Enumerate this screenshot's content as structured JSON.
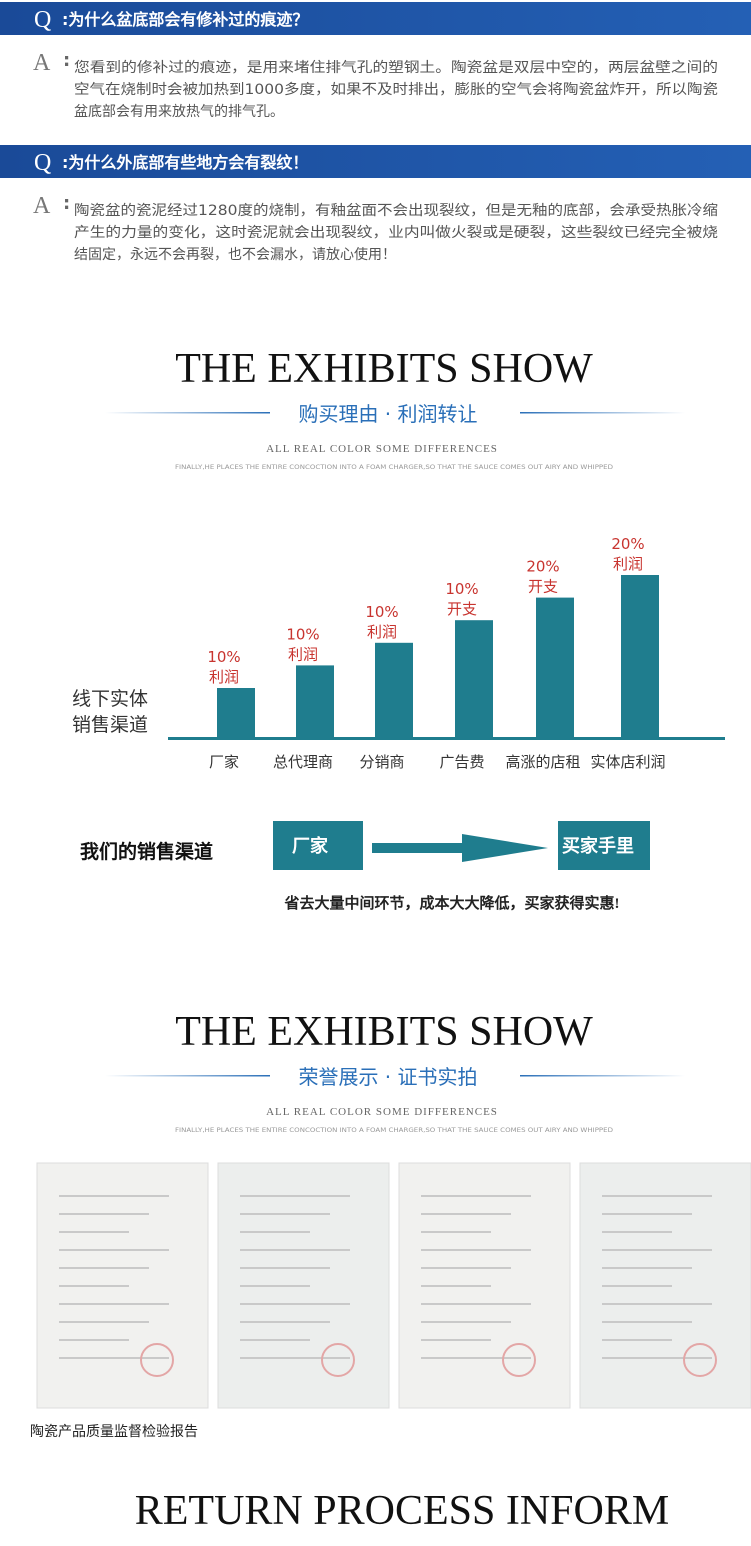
{
  "faq": [
    {
      "q": "Q",
      "question": ":为什么盆底部会有修补过的痕迹？",
      "a": "A",
      "colon": ":",
      "answer_lines": [
        "您看到的修补过的痕迹，是用来堵住排气孔的塑钢土。陶瓷盆是双层中空的，两层盆壁之间的",
        "空气在烧制时会被加热到1000多度，如果不及时排出，膨胀的空气会将陶瓷盆炸开，所以陶瓷",
        "盆底部会有用来放热气的排气孔。"
      ]
    },
    {
      "q": "Q",
      "question": ":为什么外底部有些地方会有裂纹！",
      "a": "A",
      "colon": ":",
      "answer_lines": [
        "陶瓷盆的瓷泥经过1280度的烧制，有釉盆面不会出现裂纹，但是无釉的底部，会承受热胀冷缩",
        "产生的力量的变化，这时瓷泥就会出现裂纹，业内叫做火裂或是硬裂，这些裂纹已经完全被烧",
        "结固定，永远不会再裂，也不会漏水，请放心使用！"
      ]
    }
  ],
  "exhibits": [
    {
      "title": "THE EXHIBITS SHOW",
      "subtitle": "购买理由 · 利润转让",
      "caption": "ALL REAL COLOR SOME DIFFERENCES",
      "fine_print": "FINALLY,HE PLACES THE ENTIRE CONCOCTION INTO A FOAM CHARGER,SO THAT THE SAUCE COMES OUT AIRY AND WHIPPED"
    },
    {
      "title": "THE EXHIBITS SHOW",
      "subtitle": "荣誉展示 · 证书实拍",
      "caption": "ALL REAL COLOR SOME DIFFERENCES",
      "fine_print": "FINALLY,HE PLACES THE ENTIRE CONCOCTION INTO A FOAM CHARGER,SO THAT THE SAUCE COMES OUT AIRY AND WHIPPED"
    }
  ],
  "channel_chart": {
    "side_label_lines": [
      "线下实体",
      "销售渠道"
    ],
    "bars": [
      {
        "percent": "10%",
        "label": "利润",
        "category": "厂家"
      },
      {
        "percent": "10%",
        "label": "利润",
        "category": "总代理商"
      },
      {
        "percent": "10%",
        "label": "利润",
        "category": "分销商"
      },
      {
        "percent": "10%",
        "label": "开支",
        "category": "广告费"
      },
      {
        "percent": "20%",
        "label": "开支",
        "category": "高涨的店租"
      },
      {
        "percent": "20%",
        "label": "利润",
        "category": "实体店利润"
      }
    ]
  },
  "our_channel": {
    "label": "我们的销售渠道",
    "from": "厂家",
    "to": "买家手里",
    "note": "省去大量中间环节，成本大大降低，买家获得实惠!"
  },
  "certificates": {
    "caption": "陶瓷产品质量监督检验报告"
  },
  "return_section": {
    "title": "RETURN PROCESS INFORM"
  }
}
